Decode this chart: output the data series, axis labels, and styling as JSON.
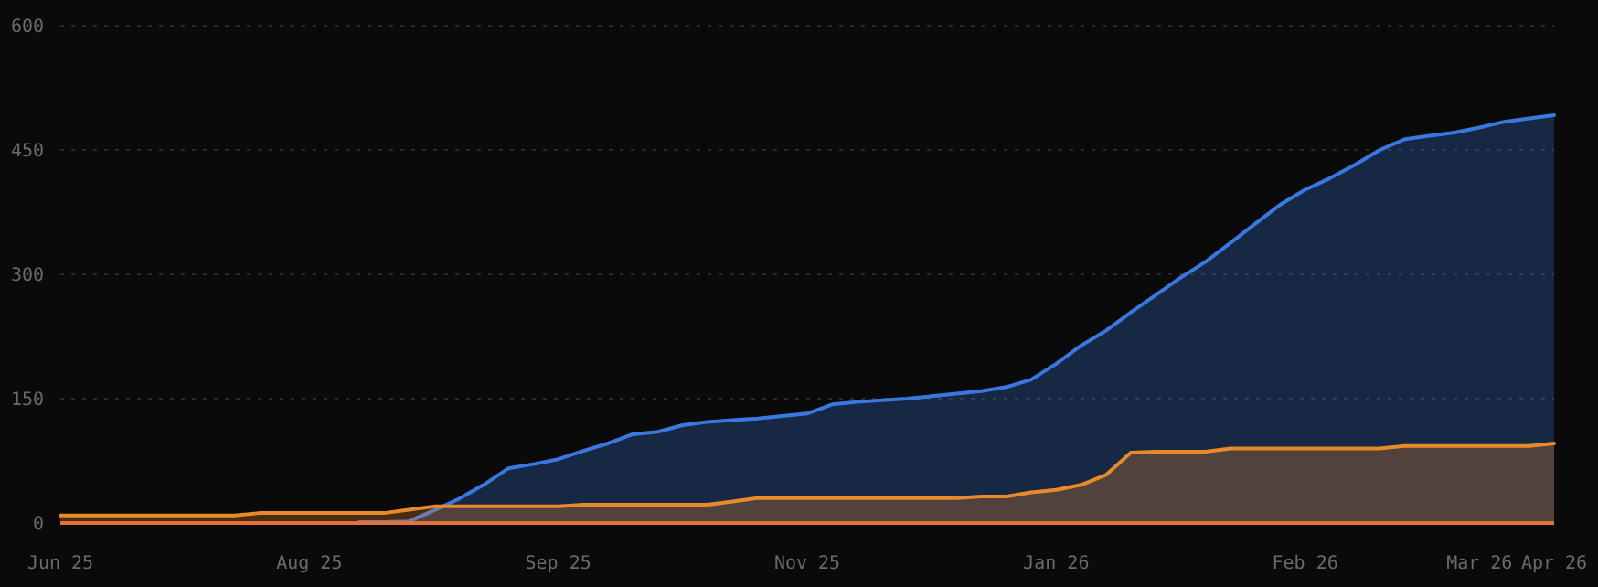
{
  "chart_data": {
    "type": "area",
    "categories": [
      "Jun 25",
      null,
      null,
      null,
      null,
      null,
      null,
      null,
      null,
      null,
      "Aug 25",
      null,
      null,
      null,
      null,
      null,
      null,
      null,
      null,
      null,
      "Sep 25",
      null,
      null,
      null,
      null,
      null,
      null,
      null,
      null,
      null,
      "Nov 25",
      null,
      null,
      null,
      null,
      null,
      null,
      null,
      null,
      null,
      "Jan 26",
      null,
      null,
      null,
      null,
      null,
      null,
      null,
      null,
      null,
      "Feb 26",
      null,
      null,
      null,
      null,
      null,
      null,
      "Mar 26",
      null,
      null,
      "Apr 26"
    ],
    "ylim": [
      0,
      600
    ],
    "yticks": [
      0,
      150,
      300,
      450,
      600
    ],
    "grid": "y",
    "series": [
      {
        "color": "#3a78e0",
        "values": [
          null,
          null,
          null,
          null,
          null,
          null,
          null,
          null,
          null,
          null,
          null,
          null,
          1,
          1,
          2,
          15,
          29,
          46,
          66,
          71,
          77,
          87,
          96,
          107,
          110,
          118,
          122,
          124,
          126,
          129,
          132,
          143,
          146,
          148,
          150,
          153,
          156,
          159,
          164,
          173,
          192,
          214,
          232,
          254,
          275,
          296,
          315,
          338,
          361,
          384,
          402,
          416,
          432,
          450,
          463,
          467,
          471,
          477,
          484,
          488,
          492
        ]
      },
      {
        "color": "#e88a2a",
        "values": [
          9,
          9,
          9,
          9,
          9,
          9,
          9,
          9,
          12,
          12,
          12,
          12,
          12,
          12,
          16,
          20,
          20,
          20,
          20,
          20,
          20,
          22,
          22,
          22,
          22,
          22,
          22,
          26,
          30,
          30,
          30,
          30,
          30,
          30,
          30,
          30,
          30,
          32,
          32,
          37,
          40,
          46,
          58,
          85,
          86,
          86,
          86,
          90,
          90,
          90,
          90,
          90,
          90,
          90,
          93,
          93,
          93,
          93,
          93,
          93,
          96
        ]
      },
      {
        "type": "line",
        "color": "#e8703a",
        "values": [
          0,
          0,
          0,
          0,
          0,
          0,
          0,
          0,
          0,
          0,
          0,
          0,
          0,
          0,
          0,
          0,
          0,
          0,
          0,
          0,
          0,
          0,
          0,
          0,
          0,
          0,
          0,
          0,
          0,
          0,
          0,
          0,
          0,
          0,
          0,
          0,
          0,
          0,
          0,
          0,
          0,
          0,
          0,
          0,
          0,
          0,
          0,
          0,
          0,
          0,
          0,
          0,
          0,
          0,
          0,
          0,
          0,
          0,
          0,
          0,
          0
        ]
      }
    ]
  }
}
